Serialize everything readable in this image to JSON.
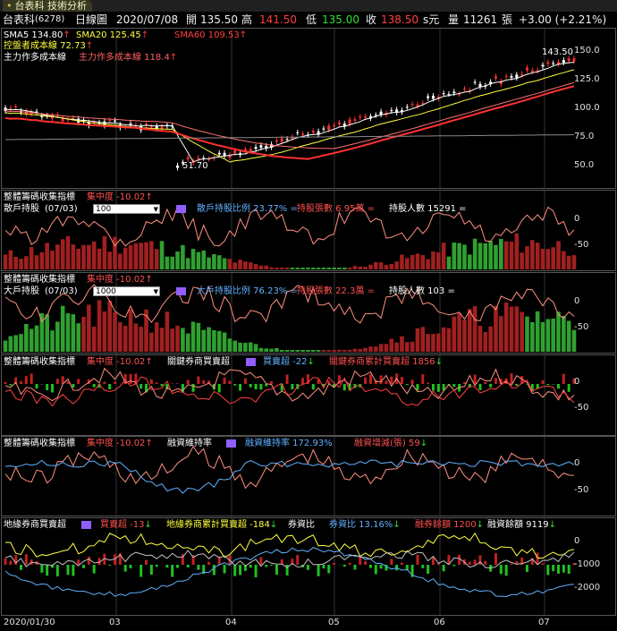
{
  "tab": {
    "label": "台表科 技術分析"
  },
  "header": {
    "stock": "台表科",
    "code": "(6278)",
    "period": "日線圖",
    "date": "2020/07/08",
    "open_label": "開",
    "open": "135.50",
    "high_label": "高",
    "high": "141.50",
    "low_label": "低",
    "low": "135.00",
    "close_label": "收",
    "close": "138.50",
    "unit": "s元",
    "volume_label": "量",
    "volume": "11261",
    "volume_unit": "張",
    "change": "+3.00 (+2.21%)"
  },
  "price_panel": {
    "sma5": "SMA5 134.80",
    "sma20": "SMA20 125.45",
    "sma60": "SMA60 109.53",
    "cost_control": "控盤者成本線 72.73",
    "main_cost1": "主力作多成本線",
    "main_cost2": "主力作多成本線 118.4",
    "peak_label": "143.50",
    "trough_label": "51.70",
    "axis": [
      "150.0",
      "125.0",
      "100.0",
      "75.0",
      "50.0"
    ]
  },
  "panel2": {
    "title": "整體籌碼收集指標",
    "focus": "集中度 -10.02",
    "holder": "散戶持股",
    "period": "(07/03)",
    "select_value": "100",
    "ratio": "散戶持股比例 23.77% =",
    "shares": "持股張數 6.95萬 =",
    "people": "持股人數 15291 =",
    "axis": [
      "0",
      "-50"
    ]
  },
  "panel3": {
    "title": "整體籌碼收集指標",
    "focus": "集中度 -10.02",
    "holder": "大戶持股",
    "period": "(07/03)",
    "select_value": "1000",
    "ratio": "大戶持股比例 76.23% =",
    "shares": "持股張數 22.3萬 =",
    "people": "持股人數 103 =",
    "axis": [
      "0",
      "-50"
    ]
  },
  "panel4": {
    "title": "整體籌碼收集指標",
    "focus": "集中度 -10.02",
    "broker": "關鍵券商買賣超",
    "net": "買賣超 -22",
    "cum": "關鍵券商累計買賣超 1856",
    "axis": [
      "0",
      "-50"
    ]
  },
  "panel5": {
    "title": "整體籌碼收集指標",
    "focus": "集中度 -10.02",
    "margin": "融資維持率",
    "margin_val": "融資維持率 172.93%",
    "margin_change": "融資增減(張) 59",
    "axis": [
      "0",
      "-50"
    ]
  },
  "panel6": {
    "title": "地緣券商買賣超",
    "net": "買賣超 -13",
    "cum": "地緣券商累計買賣超 -184",
    "short_ratio_title": "券資比",
    "short_ratio": "券資比 13.16%",
    "short_bal": "融券餘額 1200",
    "margin_bal": "融資餘額 9119",
    "axis": [
      "0",
      "-1000",
      "-2000"
    ]
  },
  "dates": [
    "2020/01/30",
    "03",
    "04",
    "05",
    "06",
    "07"
  ],
  "colors": {
    "up": "#e02020",
    "down": "#20c020",
    "bg": "#000000",
    "accent": "#ff4040"
  }
}
